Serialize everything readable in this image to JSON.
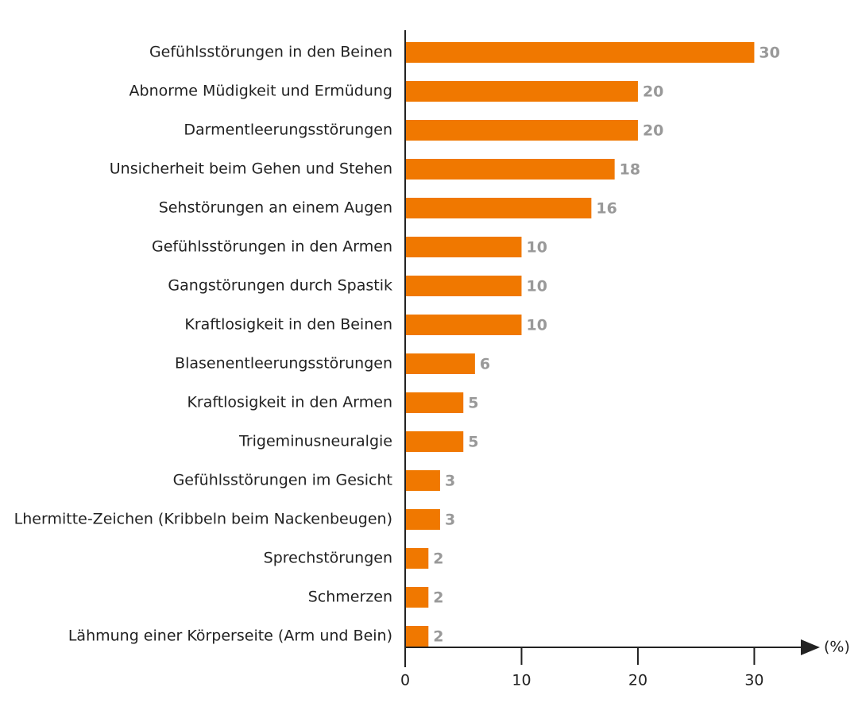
{
  "chart_data": {
    "type": "bar",
    "orientation": "horizontal",
    "categories": [
      "Gefühlsstörungen in den Beinen",
      "Abnorme Müdigkeit und Ermüdung",
      "Darmentleerungsstörungen",
      "Unsicherheit beim Gehen und Stehen",
      "Sehstörungen an einem Augen",
      "Gefühlsstörungen in den Armen",
      "Gangstörungen durch Spastik",
      "Kraftlosigkeit in den Beinen",
      "Blasenentleerungsstörungen",
      "Kraftlosigkeit in den Armen",
      "Trigeminusneuralgie",
      "Gefühlsstörungen im Gesicht",
      "Lhermitte-Zeichen (Kribbeln beim Nackenbeugen)",
      "Sprechstörungen",
      "Schmerzen",
      "Lähmung einer Körperseite (Arm und Bein)"
    ],
    "values": [
      30,
      20,
      20,
      18,
      16,
      10,
      10,
      10,
      6,
      5,
      5,
      3,
      3,
      2,
      2,
      2
    ],
    "color": "#f07800",
    "xlabel": "(%)",
    "xlim": [
      0,
      35.5
    ],
    "xticks": [
      0,
      10,
      20,
      30
    ]
  }
}
